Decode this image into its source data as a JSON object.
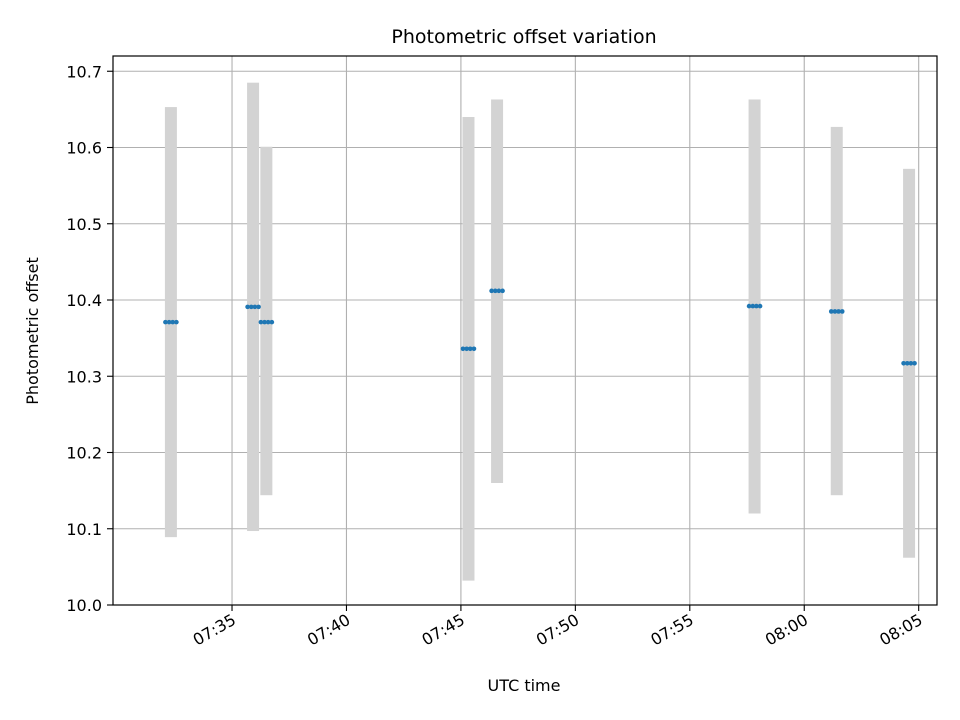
{
  "chart_data": {
    "type": "scatter",
    "title": "Photometric offset variation",
    "xlabel": "UTC time",
    "ylabel": "Photometric offset",
    "x_ticks": [
      "07:35",
      "07:40",
      "07:45",
      "07:50",
      "07:55",
      "08:00",
      "08:05"
    ],
    "x_tick_minutes": [
      35,
      40,
      45,
      50,
      55,
      60,
      65
    ],
    "xlim_minutes": [
      29.8,
      65.8
    ],
    "ylim": [
      10.0,
      10.72
    ],
    "y_ticks": [
      10.0,
      10.1,
      10.2,
      10.3,
      10.4,
      10.5,
      10.6,
      10.7
    ],
    "grid": true,
    "colors": {
      "point": "#1f77b4",
      "errorbar": "#d3d3d3",
      "grid": "#b0b0b0"
    },
    "points": [
      {
        "t": 32.33,
        "value": 10.371,
        "err_low": 10.089,
        "err_high": 10.653
      },
      {
        "t": 35.92,
        "value": 10.391,
        "err_low": 10.097,
        "err_high": 10.685
      },
      {
        "t": 36.5,
        "value": 10.371,
        "err_low": 10.144,
        "err_high": 10.601
      },
      {
        "t": 45.33,
        "value": 10.336,
        "err_low": 10.032,
        "err_high": 10.64
      },
      {
        "t": 46.58,
        "value": 10.412,
        "err_low": 10.16,
        "err_high": 10.663
      },
      {
        "t": 57.83,
        "value": 10.392,
        "err_low": 10.12,
        "err_high": 10.663
      },
      {
        "t": 61.42,
        "value": 10.385,
        "err_low": 10.144,
        "err_high": 10.627
      },
      {
        "t": 64.58,
        "value": 10.317,
        "err_low": 10.062,
        "err_high": 10.572
      }
    ]
  }
}
